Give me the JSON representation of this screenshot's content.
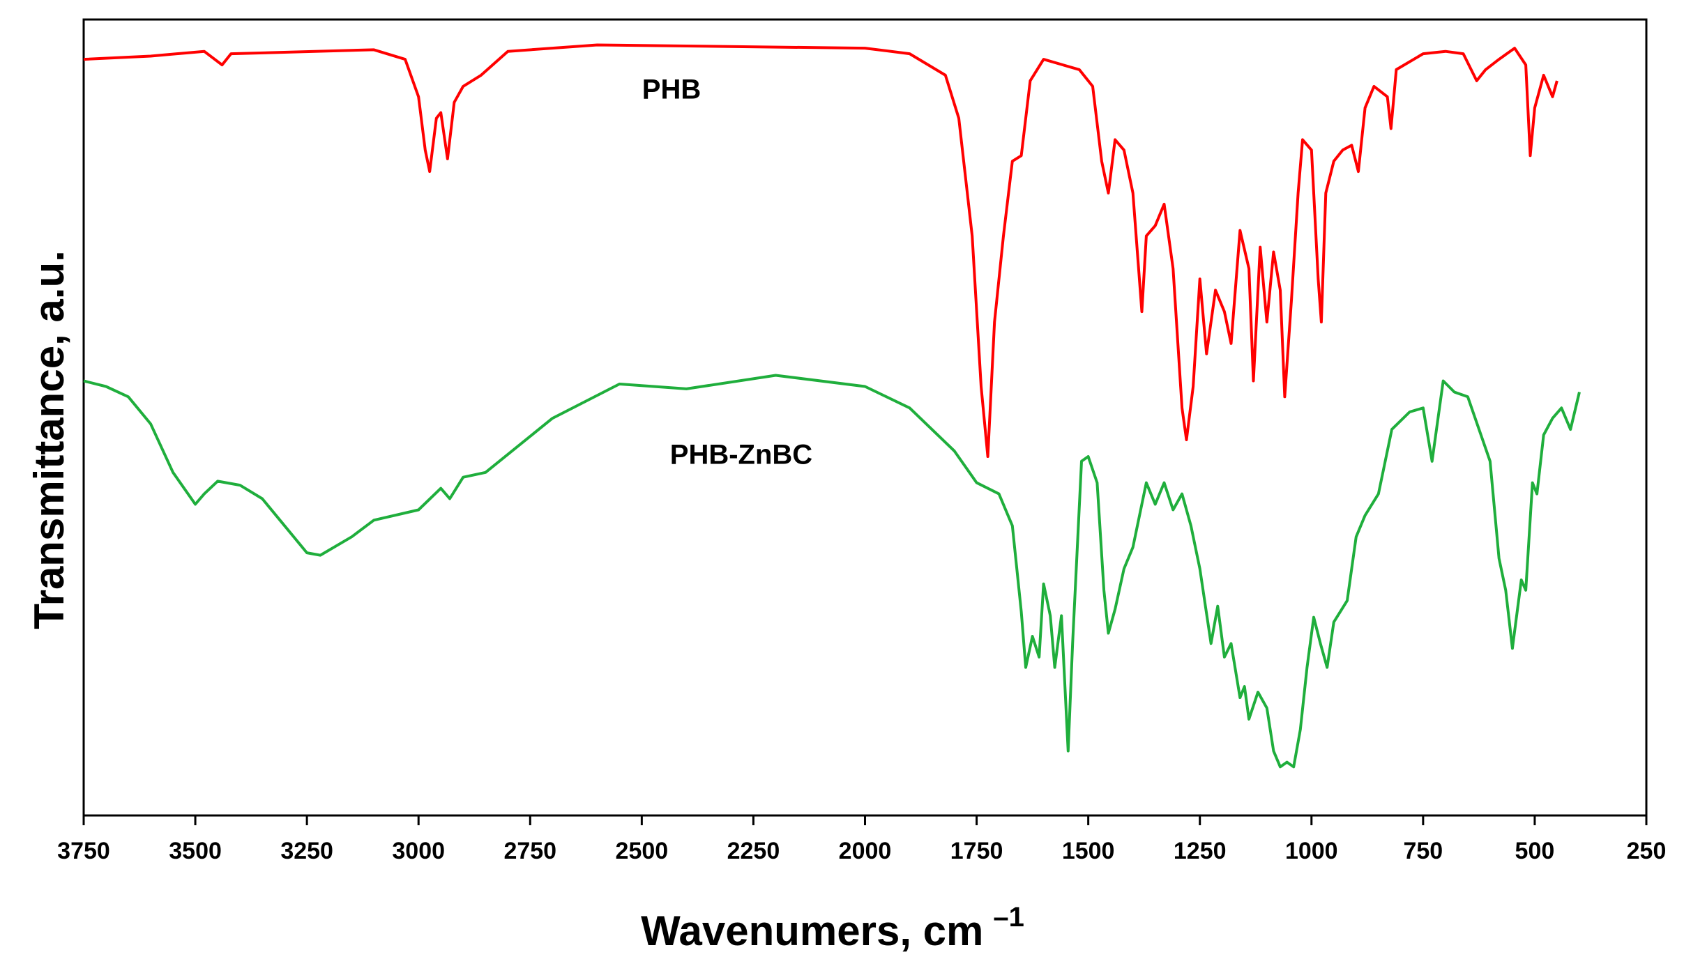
{
  "chart_data": {
    "type": "line",
    "x_label": "Wavenumers, cm",
    "x_label_superscript": "–1",
    "y_label": "Transmittance, a.u.",
    "xlim": [
      3750,
      250
    ],
    "xticks": [
      3750,
      3500,
      3250,
      3000,
      2750,
      2500,
      2250,
      2000,
      1750,
      1500,
      1250,
      1000,
      750,
      500,
      250
    ],
    "ylim": [
      0,
      100
    ],
    "series": [
      {
        "name": "PHB",
        "color": "#ff0000",
        "x": [
          3750,
          3600,
          3480,
          3440,
          3420,
          3100,
          3030,
          3000,
          2985,
          2975,
          2960,
          2950,
          2935,
          2920,
          2900,
          2880,
          2860,
          2800,
          2600,
          2000,
          1900,
          1820,
          1790,
          1760,
          1740,
          1725,
          1710,
          1690,
          1670,
          1650,
          1630,
          1600,
          1520,
          1490,
          1470,
          1455,
          1440,
          1420,
          1400,
          1380,
          1370,
          1350,
          1330,
          1310,
          1290,
          1280,
          1265,
          1250,
          1235,
          1215,
          1195,
          1180,
          1160,
          1140,
          1130,
          1115,
          1100,
          1085,
          1070,
          1060,
          1045,
          1030,
          1020,
          1000,
          985,
          978,
          968,
          950,
          930,
          910,
          895,
          880,
          860,
          830,
          822,
          810,
          750,
          700,
          660,
          630,
          610,
          580,
          545,
          520,
          510,
          500,
          480,
          460,
          450
        ],
        "values": [
          95.0,
          95.4,
          96.0,
          94.3,
          95.7,
          96.2,
          95.0,
          90.3,
          83.6,
          80.9,
          87.6,
          88.3,
          82.5,
          89.6,
          91.6,
          92.3,
          93.0,
          96.0,
          96.8,
          96.4,
          95.7,
          93.0,
          87.6,
          72.8,
          53.9,
          45.1,
          62.0,
          72.8,
          82.2,
          82.9,
          92.3,
          95.0,
          93.7,
          91.6,
          82.2,
          78.2,
          84.9,
          83.6,
          78.2,
          63.3,
          72.8,
          74.1,
          76.8,
          68.7,
          51.2,
          47.2,
          53.9,
          67.4,
          58.0,
          66.0,
          63.3,
          59.3,
          73.5,
          68.7,
          54.6,
          71.4,
          62.0,
          70.8,
          66.0,
          52.6,
          64.7,
          78.2,
          84.9,
          83.6,
          67.4,
          62.0,
          78.2,
          82.2,
          83.6,
          84.2,
          80.9,
          88.9,
          91.6,
          90.3,
          86.3,
          93.7,
          95.7,
          96.0,
          95.7,
          92.3,
          93.7,
          95.0,
          96.4,
          94.3,
          82.9,
          88.9,
          93.0,
          90.3,
          92.3
        ]
      },
      {
        "name": "PHB-ZnBC",
        "color": "#1fae3c",
        "x": [
          3750,
          3700,
          3650,
          3600,
          3550,
          3500,
          3480,
          3450,
          3400,
          3350,
          3300,
          3250,
          3220,
          3150,
          3100,
          3000,
          2950,
          2930,
          2900,
          2850,
          2700,
          2550,
          2400,
          2200,
          2000,
          1900,
          1800,
          1750,
          1700,
          1670,
          1650,
          1640,
          1625,
          1610,
          1600,
          1585,
          1575,
          1560,
          1545,
          1535,
          1515,
          1500,
          1480,
          1465,
          1455,
          1440,
          1420,
          1400,
          1370,
          1350,
          1330,
          1310,
          1290,
          1270,
          1250,
          1225,
          1210,
          1195,
          1180,
          1160,
          1150,
          1140,
          1120,
          1100,
          1085,
          1070,
          1055,
          1040,
          1025,
          1010,
          995,
          980,
          965,
          950,
          920,
          900,
          880,
          850,
          820,
          780,
          750,
          730,
          705,
          680,
          650,
          600,
          580,
          565,
          550,
          530,
          520,
          505,
          495,
          480,
          460,
          440,
          420,
          400
        ],
        "values": [
          54.6,
          53.9,
          52.6,
          49.2,
          43.1,
          39.1,
          40.4,
          42.0,
          41.5,
          39.8,
          36.4,
          33.0,
          32.7,
          35.0,
          37.1,
          38.4,
          41.1,
          39.8,
          42.5,
          43.1,
          49.9,
          54.2,
          53.6,
          55.3,
          53.9,
          51.2,
          45.8,
          41.8,
          40.4,
          36.4,
          25.6,
          18.6,
          22.5,
          19.9,
          29.1,
          25.1,
          18.6,
          25.1,
          8.1,
          21.6,
          44.5,
          45.1,
          41.8,
          28.3,
          22.9,
          25.9,
          31.0,
          33.7,
          41.8,
          39.1,
          41.8,
          38.4,
          40.4,
          36.4,
          31.0,
          21.6,
          26.3,
          19.9,
          21.6,
          14.8,
          16.2,
          12.1,
          15.5,
          13.5,
          8.1,
          6.1,
          6.7,
          6.1,
          10.8,
          18.6,
          24.9,
          21.6,
          18.6,
          24.3,
          27.0,
          35.0,
          37.7,
          40.4,
          48.5,
          50.7,
          51.2,
          44.5,
          54.6,
          53.2,
          52.6,
          44.5,
          32.3,
          28.3,
          21.0,
          29.6,
          28.3,
          41.8,
          40.4,
          47.8,
          49.9,
          51.2,
          48.5,
          53.2
        ]
      }
    ]
  }
}
